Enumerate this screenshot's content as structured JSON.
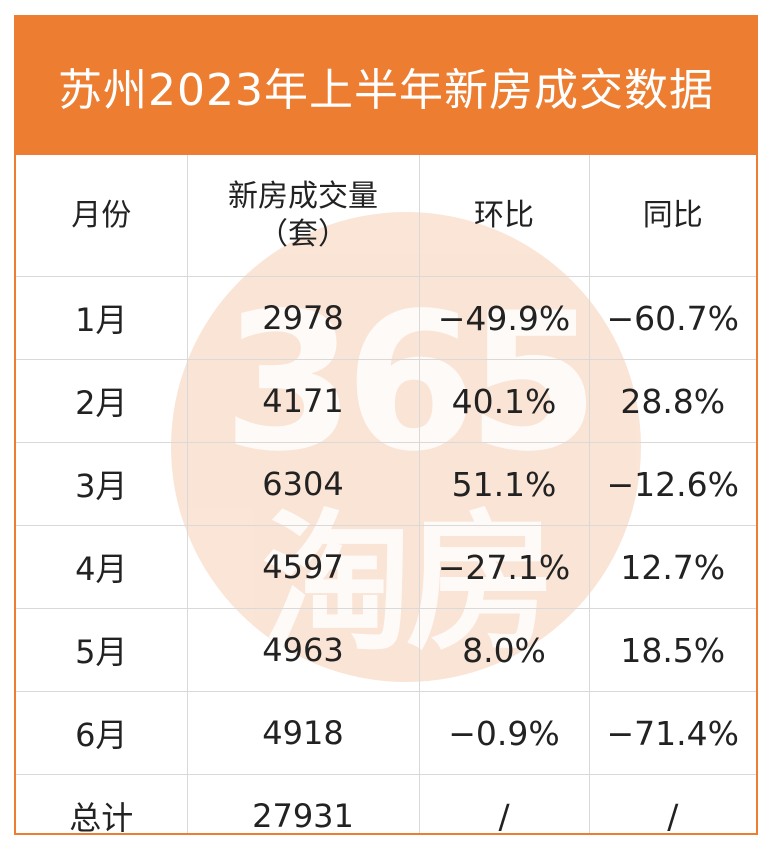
{
  "title": "苏州2023年上半年新房成交数据",
  "watermark": {
    "number": "365",
    "text": "淘房"
  },
  "headers": {
    "month": "月份",
    "volume_line1": "新房成交量",
    "volume_line2": "（套）",
    "mom": "环比",
    "yoy": "同比"
  },
  "rows": [
    {
      "month": "1月",
      "volume": "2978",
      "mom": "−49.9%",
      "yoy": "−60.7%"
    },
    {
      "month": "2月",
      "volume": "4171",
      "mom": "40.1%",
      "yoy": "28.8%"
    },
    {
      "month": "3月",
      "volume": "6304",
      "mom": "51.1%",
      "yoy": "−12.6%"
    },
    {
      "month": "4月",
      "volume": "4597",
      "mom": "−27.1%",
      "yoy": "12.7%"
    },
    {
      "month": "5月",
      "volume": "4963",
      "mom": "8.0%",
      "yoy": "18.5%"
    },
    {
      "month": "6月",
      "volume": "4918",
      "mom": "−0.9%",
      "yoy": "−71.4%"
    },
    {
      "month": "总计",
      "volume": "27931",
      "mom": "/",
      "yoy": "/"
    }
  ],
  "colors": {
    "accent": "#ED7D31",
    "positive": "#C0292B",
    "negative": "#2AA052",
    "watermark": "#F9DCC8"
  },
  "chart_data": {
    "type": "table",
    "title": "苏州2023年上半年新房成交数据",
    "columns": [
      "月份",
      "新房成交量（套）",
      "环比",
      "同比"
    ],
    "categories": [
      "1月",
      "2月",
      "3月",
      "4月",
      "5月",
      "6月"
    ],
    "series": [
      {
        "name": "新房成交量（套）",
        "values": [
          2978,
          4171,
          6304,
          4597,
          4963,
          4918
        ]
      },
      {
        "name": "环比",
        "values": [
          -49.9,
          40.1,
          51.1,
          -27.1,
          8.0,
          -0.9
        ]
      },
      {
        "name": "同比",
        "values": [
          -60.7,
          28.8,
          -12.6,
          12.7,
          18.5,
          -71.4
        ]
      }
    ],
    "total": {
      "label": "总计",
      "volume": 27931,
      "mom": "/",
      "yoy": "/"
    }
  }
}
